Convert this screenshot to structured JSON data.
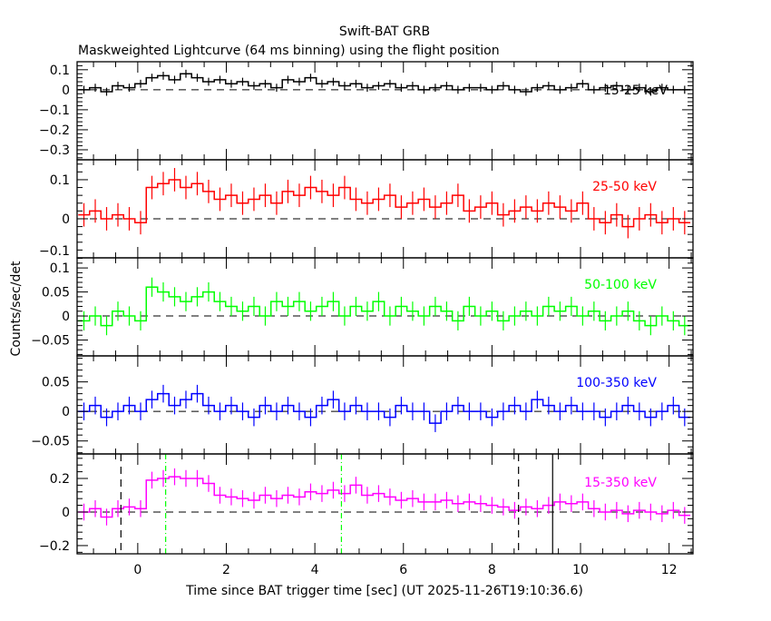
{
  "chart_data": {
    "type": "line",
    "title": "Swift-BAT GRB",
    "subtitle": "Maskweighted Lightcurve (64 ms binning) using the flight position",
    "xlabel": "Time since BAT trigger time [sec] (UT 2025-11-26T19:10:36.6)",
    "ylabel": "Counts/sec/det",
    "xlim": [
      -1.37,
      12.54
    ],
    "x_ticks": [
      0,
      2,
      4,
      6,
      8,
      10,
      12
    ],
    "bin_start": -1.344,
    "bin_width": 0.256,
    "panels": [
      {
        "name": "15-25 keV",
        "color": "#000000",
        "ylim": [
          -0.35,
          0.14
        ],
        "y_ticks": [
          0.1,
          0,
          -0.1,
          -0.2,
          -0.3
        ],
        "y_tick_labels": [
          "0.1",
          "0",
          "−0.1",
          "−0.2",
          "−0.3"
        ],
        "error": 0.02,
        "values": [
          0.0,
          0.01,
          -0.01,
          0.02,
          0.01,
          0.03,
          0.06,
          0.07,
          0.05,
          0.08,
          0.06,
          0.04,
          0.05,
          0.03,
          0.04,
          0.02,
          0.03,
          0.01,
          0.05,
          0.04,
          0.06,
          0.03,
          0.04,
          0.02,
          0.03,
          0.01,
          0.02,
          0.03,
          0.01,
          0.02,
          0.0,
          0.01,
          0.02,
          0.0,
          0.01,
          0.01,
          0.0,
          0.02,
          0.0,
          -0.01,
          0.01,
          0.02,
          0.0,
          0.01,
          0.03,
          0.0,
          0.01,
          0.02,
          0.0,
          0.01,
          -0.01,
          0.01,
          0.0,
          0.0
        ]
      },
      {
        "name": "25-50 keV",
        "color": "#ff0000",
        "ylim": [
          -0.1,
          0.151
        ],
        "y_ticks": [
          0.1,
          0,
          -0.1
        ],
        "y_tick_labels": [
          "0.1",
          "0",
          "−0.1"
        ],
        "error": 0.03,
        "values": [
          0.01,
          0.02,
          0.0,
          0.01,
          0.0,
          -0.01,
          0.08,
          0.09,
          0.1,
          0.08,
          0.09,
          0.07,
          0.05,
          0.06,
          0.04,
          0.05,
          0.06,
          0.04,
          0.07,
          0.06,
          0.08,
          0.07,
          0.06,
          0.08,
          0.05,
          0.04,
          0.05,
          0.06,
          0.03,
          0.04,
          0.05,
          0.03,
          0.04,
          0.06,
          0.02,
          0.03,
          0.04,
          0.01,
          0.02,
          0.03,
          0.02,
          0.04,
          0.03,
          0.02,
          0.04,
          0.0,
          -0.01,
          0.01,
          -0.02,
          0.0,
          0.01,
          -0.01,
          0.0,
          -0.01
        ]
      },
      {
        "name": "50-100 keV",
        "color": "#00ff00",
        "ylim": [
          -0.083,
          0.121
        ],
        "y_ticks": [
          0.1,
          0.05,
          0,
          -0.05
        ],
        "y_tick_labels": [
          "0.1",
          "0.05",
          "0",
          "−0.05"
        ],
        "error": 0.02,
        "values": [
          -0.01,
          0.0,
          -0.02,
          0.01,
          0.0,
          -0.01,
          0.06,
          0.05,
          0.04,
          0.03,
          0.04,
          0.05,
          0.03,
          0.02,
          0.01,
          0.02,
          0.0,
          0.03,
          0.02,
          0.03,
          0.01,
          0.02,
          0.03,
          0.0,
          0.02,
          0.01,
          0.03,
          0.0,
          0.02,
          0.01,
          0.0,
          0.02,
          0.01,
          -0.01,
          0.02,
          0.0,
          0.01,
          -0.01,
          0.0,
          0.01,
          0.0,
          0.02,
          0.01,
          0.02,
          0.0,
          0.01,
          -0.01,
          0.0,
          0.01,
          -0.01,
          -0.02,
          0.0,
          -0.01,
          -0.02
        ]
      },
      {
        "name": "100-350 keV",
        "color": "#0000ff",
        "ylim": [
          -0.072,
          0.094
        ],
        "y_ticks": [
          0.05,
          0,
          -0.05
        ],
        "y_tick_labels": [
          "0.05",
          "0",
          "−0.05"
        ],
        "error": 0.015,
        "values": [
          0.0,
          0.01,
          -0.01,
          0.0,
          0.01,
          0.0,
          0.02,
          0.03,
          0.01,
          0.02,
          0.03,
          0.01,
          0.0,
          0.01,
          0.0,
          -0.01,
          0.01,
          0.0,
          0.01,
          0.0,
          -0.01,
          0.01,
          0.02,
          0.0,
          0.01,
          0.0,
          0.0,
          -0.01,
          0.01,
          0.0,
          0.0,
          -0.02,
          0.0,
          0.01,
          0.0,
          0.0,
          -0.01,
          0.0,
          0.01,
          0.0,
          0.02,
          0.01,
          0.0,
          0.01,
          0.0,
          0.0,
          -0.01,
          0.0,
          0.01,
          0.0,
          -0.01,
          0.0,
          0.01,
          -0.01
        ]
      },
      {
        "name": "15-350 keV",
        "color": "#ff00ff",
        "ylim": [
          -0.249,
          0.346
        ],
        "y_ticks": [
          0.2,
          0,
          -0.2
        ],
        "y_tick_labels": [
          "0.2",
          "0",
          "−0.2"
        ],
        "error": 0.05,
        "values": [
          0.0,
          0.02,
          -0.03,
          0.02,
          0.03,
          0.02,
          0.19,
          0.2,
          0.21,
          0.2,
          0.2,
          0.17,
          0.1,
          0.09,
          0.08,
          0.07,
          0.1,
          0.08,
          0.1,
          0.09,
          0.12,
          0.11,
          0.13,
          0.11,
          0.16,
          0.1,
          0.11,
          0.09,
          0.07,
          0.08,
          0.06,
          0.06,
          0.07,
          0.05,
          0.06,
          0.05,
          0.04,
          0.03,
          0.01,
          0.03,
          0.02,
          0.04,
          0.06,
          0.05,
          0.06,
          0.02,
          0.0,
          0.01,
          -0.01,
          0.01,
          0.0,
          -0.01,
          0.01,
          -0.02
        ],
        "vlines": [
          {
            "t": -0.38,
            "style": "dashed",
            "color": "#000000"
          },
          {
            "t": 8.6,
            "style": "dashed",
            "color": "#000000"
          },
          {
            "t": 0.63,
            "style": "dashdot",
            "color": "#00ff00"
          },
          {
            "t": 4.6,
            "style": "dashdot",
            "color": "#00ff00"
          },
          {
            "t": 9.37,
            "style": "solid",
            "color": "#000000"
          }
        ]
      }
    ],
    "grid": false,
    "legend": "in-panel labels, right"
  }
}
